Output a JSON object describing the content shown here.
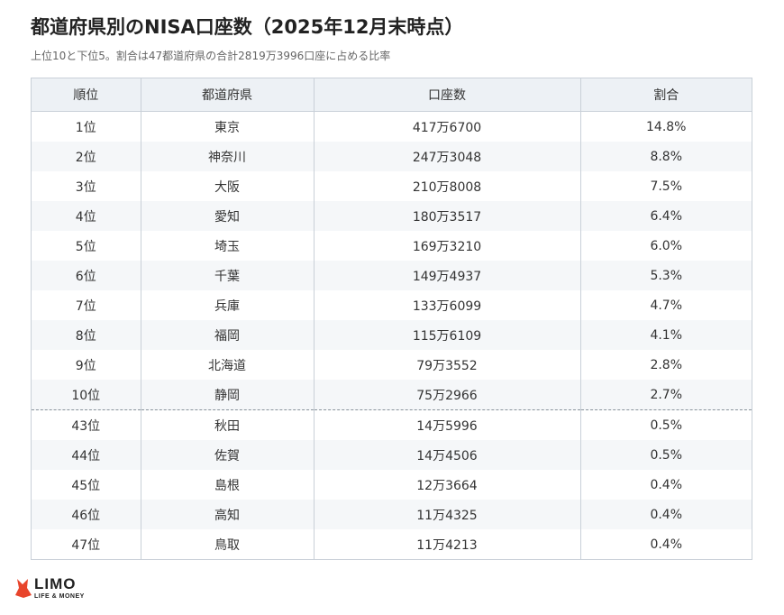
{
  "chart_data": {
    "type": "table",
    "title": "都道府県別のNISA口座数（2025年12月末時点）",
    "subtitle": "上位10と下位5。割合は47都道府県の合計2819万3996口座に占める比率",
    "columns": [
      "順位",
      "都道府県",
      "口座数",
      "割合"
    ],
    "rows": [
      [
        "1位",
        "東京",
        "417万6700",
        "14.8%"
      ],
      [
        "2位",
        "神奈川",
        "247万3048",
        "8.8%"
      ],
      [
        "3位",
        "大阪",
        "210万8008",
        "7.5%"
      ],
      [
        "4位",
        "愛知",
        "180万3517",
        "6.4%"
      ],
      [
        "5位",
        "埼玉",
        "169万3210",
        "6.0%"
      ],
      [
        "6位",
        "千葉",
        "149万4937",
        "5.3%"
      ],
      [
        "7位",
        "兵庫",
        "133万6099",
        "4.7%"
      ],
      [
        "8位",
        "福岡",
        "115万6109",
        "4.1%"
      ],
      [
        "9位",
        "北海道",
        "79万3552",
        "2.8%"
      ],
      [
        "10位",
        "静岡",
        "75万2966",
        "2.7%"
      ],
      [
        "43位",
        "秋田",
        "14万5996",
        "0.5%"
      ],
      [
        "44位",
        "佐賀",
        "14万4506",
        "0.5%"
      ],
      [
        "45位",
        "島根",
        "12万3664",
        "0.4%"
      ],
      [
        "46位",
        "高知",
        "11万4325",
        "0.4%"
      ],
      [
        "47位",
        "鳥取",
        "11万4213",
        "0.4%"
      ]
    ],
    "divider_after_row": 10
  },
  "logo": {
    "name": "LIMO",
    "tagline": "LIFE & MONEY",
    "color": "#e8452c"
  }
}
